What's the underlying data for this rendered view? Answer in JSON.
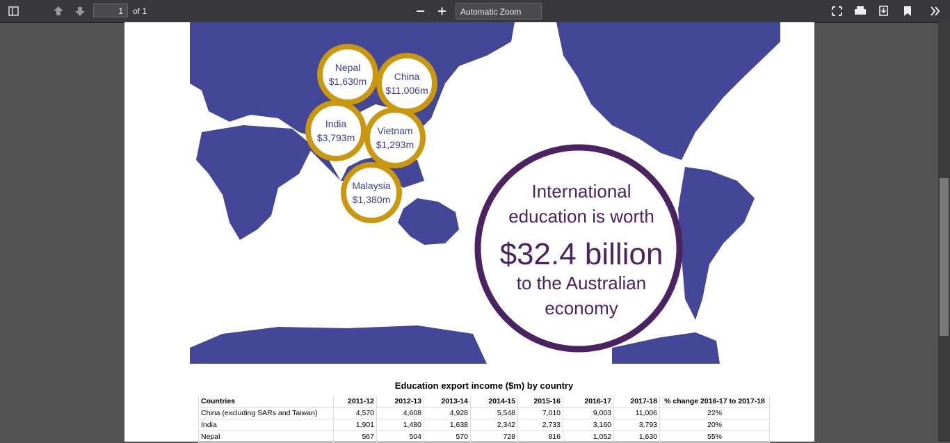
{
  "toolbar": {
    "page_number": "1",
    "page_count": "of 1",
    "zoom": "Automatic Zoom"
  },
  "map": {
    "bubbles": [
      {
        "country": "Nepal",
        "amount": "$1,630m"
      },
      {
        "country": "China",
        "amount": "$11,006m"
      },
      {
        "country": "India",
        "amount": "$3,793m"
      },
      {
        "country": "Vietnam",
        "amount": "$1,293m"
      },
      {
        "country": "Malaysia",
        "amount": "$1,380m"
      }
    ],
    "headline": {
      "line1": "International",
      "line2": "education is worth",
      "amount": "$32.4 billion",
      "line3": "to the Australian",
      "line4": "economy"
    }
  },
  "table": {
    "title": "Education export income  ($m) by country",
    "header": [
      "Countries",
      "2011-12",
      "2012-13",
      "2013-14",
      "2014-15",
      "2015-16",
      "2016-17",
      "2017-18",
      "% change 2016-17 to 2017-18"
    ],
    "rows": [
      [
        "China (excluding SARs and Taiwan)",
        "4,570",
        "4,608",
        "4,928",
        "5,548",
        "7,010",
        "9,003",
        "11,006",
        "22%"
      ],
      [
        "India",
        "1,901",
        "1,480",
        "1,638",
        "2,342",
        "2,733",
        "3,160",
        "3,793",
        "20%"
      ],
      [
        "Nepal",
        "567",
        "504",
        "570",
        "728",
        "816",
        "1,052",
        "1,630",
        "55%"
      ]
    ]
  }
}
